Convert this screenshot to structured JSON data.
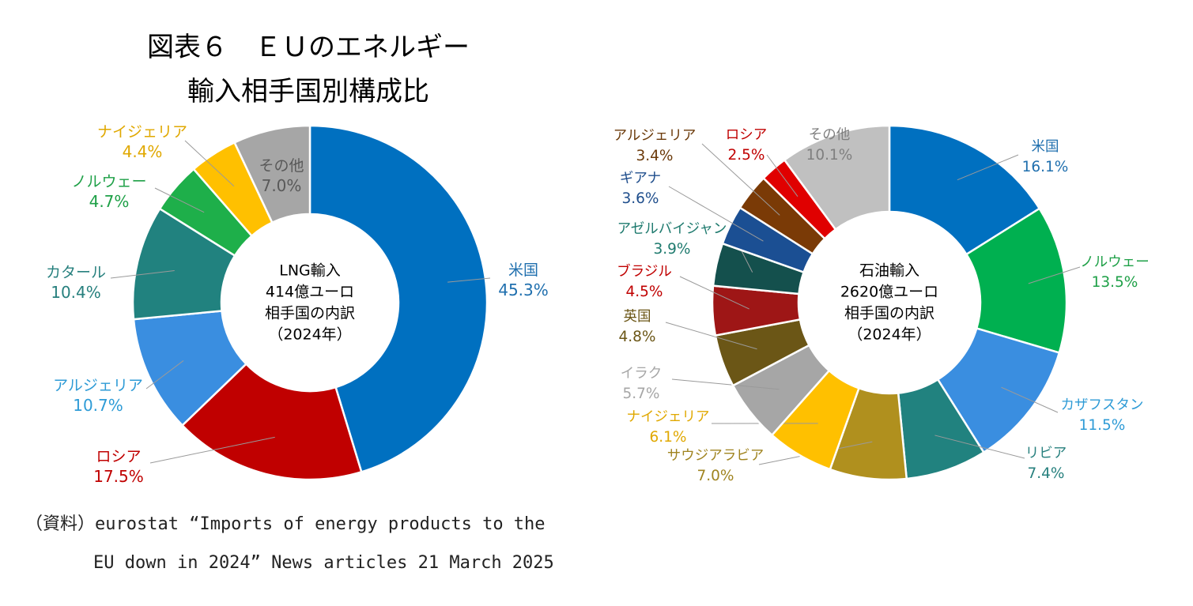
{
  "title": {
    "line1": "図表６　ＥＵのエネルギー",
    "line2": "輸入相手国別構成比"
  },
  "source": {
    "line1": "（資料）eurostat “Imports of energy products to the",
    "line2": "EU down in 2024” News articles 21 March 2025"
  },
  "chart_data": [
    {
      "type": "pie",
      "donut": true,
      "center_label": [
        "LNG輸入",
        "414億ユーロ",
        "相手国の内訳",
        "（2024年）"
      ],
      "categories": [
        "米国",
        "ロシア",
        "アルジェリア",
        "カタール",
        "ノルウェー",
        "ナイジェリア",
        "その他"
      ],
      "values": [
        45.3,
        17.5,
        10.7,
        10.4,
        4.7,
        4.4,
        7.0
      ],
      "value_labels": [
        "45.3%",
        "17.5%",
        "10.7%",
        "10.4%",
        "4.7%",
        "4.4%",
        "7.0%"
      ],
      "colors": [
        "#0070C0",
        "#C00000",
        "#3A8EE0",
        "#21827F",
        "#1EAF4A",
        "#FFC000",
        "#A6A6A6"
      ],
      "label_colors": [
        "#1F6FAE",
        "#C00000",
        "#2E9BD6",
        "#27807E",
        "#1EA047",
        "#E0A800",
        "#595959"
      ]
    },
    {
      "type": "pie",
      "donut": true,
      "center_label": [
        "石油輸入",
        "2620億ユーロ",
        "相手国の内訳",
        "（2024年）"
      ],
      "categories": [
        "米国",
        "ノルウェー",
        "カザフスタン",
        "リビア",
        "サウジアラビア",
        "ナイジェリア",
        "イラク",
        "英国",
        "ブラジル",
        "アゼルバイジャン",
        "ギアナ",
        "アルジェリア",
        "ロシア",
        "その他"
      ],
      "values": [
        16.1,
        13.5,
        11.5,
        7.4,
        7.0,
        6.1,
        5.7,
        4.8,
        4.5,
        3.9,
        3.6,
        3.4,
        2.5,
        10.1
      ],
      "value_labels": [
        "16.1%",
        "13.5%",
        "11.5%",
        "7.4%",
        "7.0%",
        "6.1%",
        "5.7%",
        "4.8%",
        "4.5%",
        "3.9%",
        "3.6%",
        "3.4%",
        "2.5%",
        "10.1%"
      ],
      "colors": [
        "#0070C0",
        "#00B050",
        "#3A8EE0",
        "#21827F",
        "#B0901E",
        "#FFC000",
        "#A6A6A6",
        "#6B5616",
        "#9E1616",
        "#14504D",
        "#1B4F93",
        "#7A3A06",
        "#E00000",
        "#C0C0C0"
      ],
      "label_colors": [
        "#1F6FAE",
        "#1EA047",
        "#2E9BD6",
        "#27807E",
        "#A08420",
        "#E0A800",
        "#A6A6A6",
        "#6B5616",
        "#C00000",
        "#1E7A6E",
        "#1F4E8C",
        "#6B3A0A",
        "#C00000",
        "#7F7F7F"
      ]
    }
  ]
}
